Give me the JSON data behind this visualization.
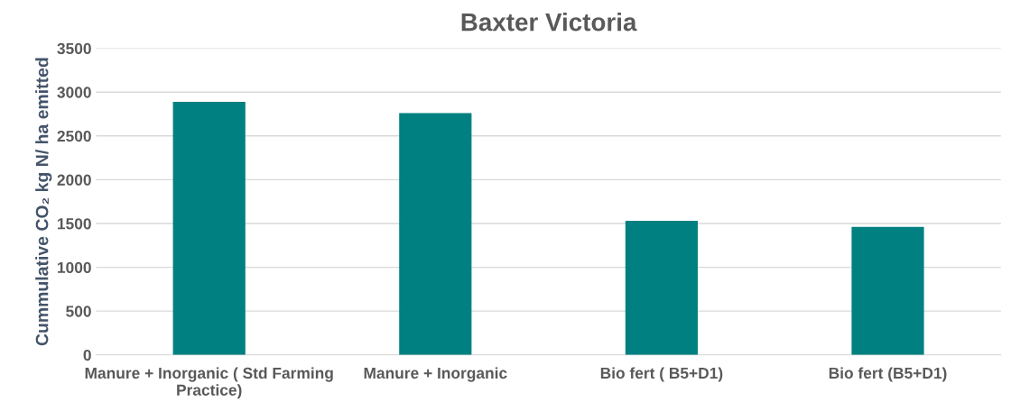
{
  "chart_data": {
    "type": "bar",
    "title": "Baxter Victoria",
    "ylabel": "Cummulative CO₂ kg N/ ha emitted",
    "categories": [
      "Manure + Inorganic ( Std Farming Practice)",
      "Manure + Inorganic",
      "Bio fert ( B5+D1)",
      "Bio fert (B5+D1)"
    ],
    "values": [
      2890,
      2760,
      1530,
      1460
    ],
    "color": "#008080",
    "ylim": [
      0,
      3500
    ],
    "yticks": [
      0,
      500,
      1000,
      1500,
      2000,
      2500,
      3000,
      3500
    ],
    "grid": "y",
    "legend": false
  }
}
